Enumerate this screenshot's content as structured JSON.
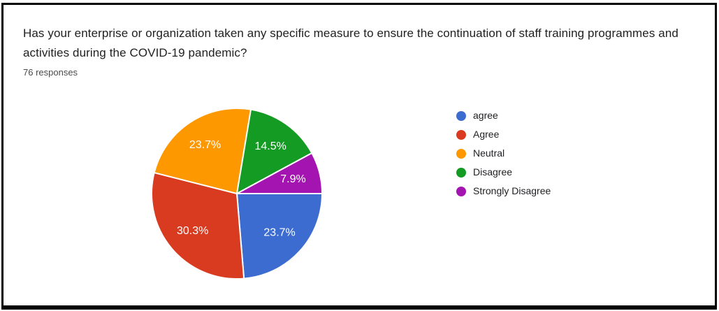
{
  "header": {
    "title": "Has your enterprise or organization taken any specific measure to ensure the continuation of staff training programmes and activities during the COVID-19 pandemic?",
    "responses": "76 responses"
  },
  "chart_data": {
    "type": "pie",
    "title": "Has your enterprise or organization taken any specific measure to ensure the continuation of staff training programmes and activities during the COVID-19 pandemic?",
    "subtitle": "76 responses",
    "total_responses": 76,
    "categories": [
      "agree",
      "Agree",
      "Neutral",
      "Disagree",
      "Strongly Disagree"
    ],
    "values": [
      23.7,
      30.3,
      23.7,
      14.5,
      7.9
    ],
    "percent_labels": [
      "23.7%",
      "30.3%",
      "23.7%",
      "14.5%",
      "7.9%"
    ],
    "colors": [
      "#3D6CD1",
      "#D93B20",
      "#FE9800",
      "#149B24",
      "#A314B0"
    ],
    "slice_label_color": "#ffffff",
    "slice_separator_color": "#ffffff",
    "legend_position": "right",
    "start_angle_deg": 0,
    "direction": "clockwise"
  },
  "frame": {
    "border_color": "#000000"
  }
}
